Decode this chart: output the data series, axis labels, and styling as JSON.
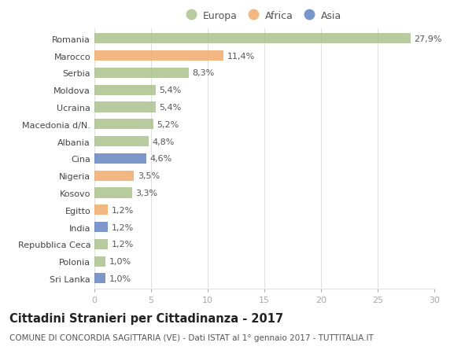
{
  "categories": [
    "Romania",
    "Marocco",
    "Serbia",
    "Moldova",
    "Ucraina",
    "Macedonia d/N.",
    "Albania",
    "Cina",
    "Nigeria",
    "Kosovo",
    "Egitto",
    "India",
    "Repubblica Ceca",
    "Polonia",
    "Sri Lanka"
  ],
  "values": [
    27.9,
    11.4,
    8.3,
    5.4,
    5.4,
    5.2,
    4.8,
    4.6,
    3.5,
    3.3,
    1.2,
    1.2,
    1.2,
    1.0,
    1.0
  ],
  "bar_colors": [
    "#a8c08a",
    "#f0a868",
    "#a8c08a",
    "#a8c08a",
    "#a8c08a",
    "#a8c08a",
    "#a8c08a",
    "#6080c0",
    "#f0a868",
    "#a8c08a",
    "#f0a868",
    "#6080c0",
    "#a8c08a",
    "#a8c08a",
    "#6080c0"
  ],
  "labels": [
    "27,9%",
    "11,4%",
    "8,3%",
    "5,4%",
    "5,4%",
    "5,2%",
    "4,8%",
    "4,6%",
    "3,5%",
    "3,3%",
    "1,2%",
    "1,2%",
    "1,2%",
    "1,0%",
    "1,0%"
  ],
  "legend": [
    {
      "label": "Europa",
      "color": "#a8c08a"
    },
    {
      "label": "Africa",
      "color": "#f0a868"
    },
    {
      "label": "Asia",
      "color": "#5a7fc0"
    }
  ],
  "title": "Cittadini Stranieri per Cittadinanza - 2017",
  "subtitle": "COMUNE DI CONCORDIA SAGITTARIA (VE) - Dati ISTAT al 1° gennaio 2017 - TUTTITALIA.IT",
  "xlim": [
    0,
    30
  ],
  "xticks": [
    0,
    5,
    10,
    15,
    20,
    25,
    30
  ],
  "background_color": "#ffffff",
  "grid_color": "#e0e0e0",
  "title_fontsize": 10.5,
  "subtitle_fontsize": 7.5,
  "label_fontsize": 8,
  "tick_fontsize": 8,
  "bar_height": 0.6
}
